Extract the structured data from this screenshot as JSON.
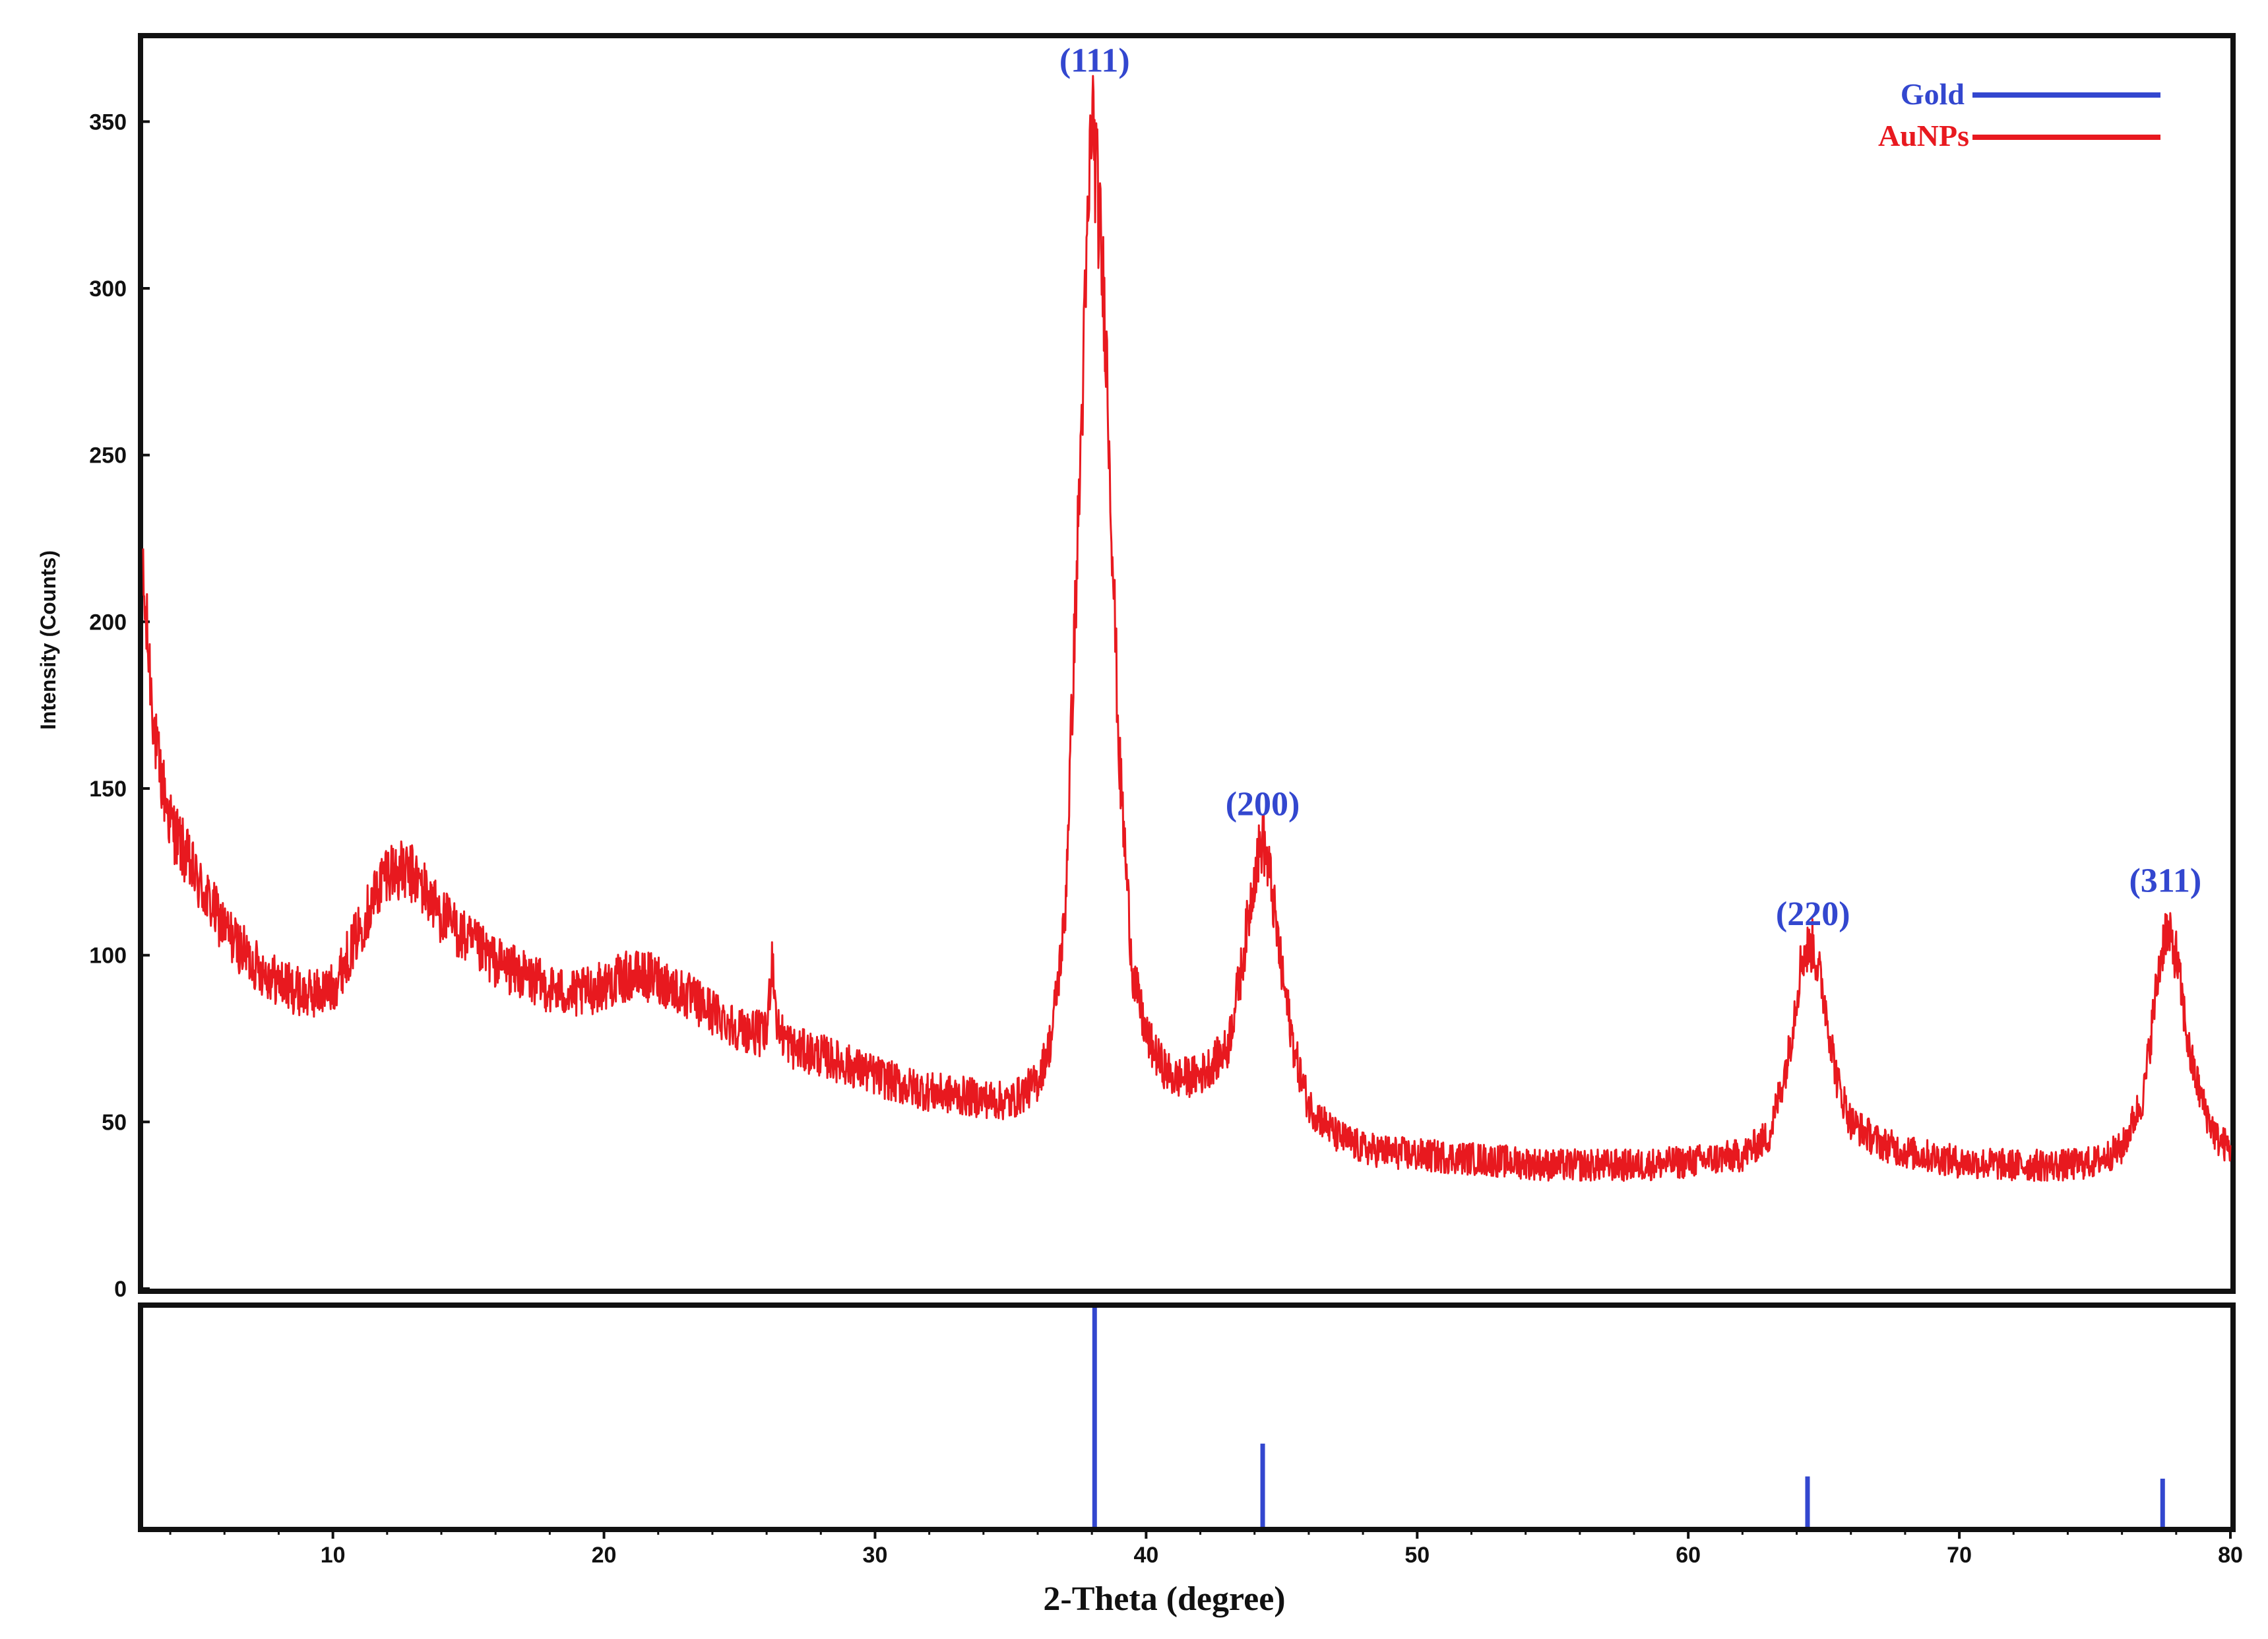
{
  "chart_data": {
    "type": "line",
    "xlabel": "2-Theta (degree)",
    "ylabel": "Intensity (Counts)",
    "xlim": [
      3,
      80
    ],
    "ylim": [
      0,
      375
    ],
    "x_ticks": [
      10,
      20,
      30,
      40,
      50,
      60,
      70,
      80
    ],
    "y_ticks": [
      0,
      50,
      100,
      150,
      200,
      250,
      300,
      350
    ],
    "legend": [
      {
        "name": "Gold",
        "color": "#3347cf"
      },
      {
        "name": "AuNPs",
        "color": "#e8191f"
      }
    ],
    "series": [
      {
        "name": "AuNPs",
        "color": "#e8191f",
        "x": [
          3,
          3.5,
          4,
          5,
          6,
          7,
          8,
          9,
          10,
          11,
          12,
          13,
          14,
          15,
          16,
          17,
          18,
          19,
          20,
          21,
          22,
          23,
          24,
          25,
          26,
          26.2,
          26.4,
          27,
          28,
          29,
          30,
          31,
          32,
          33,
          34,
          35,
          36,
          36.5,
          37,
          37.5,
          38,
          38.5,
          39,
          39.5,
          40,
          40.5,
          41,
          42,
          43,
          43.5,
          44,
          44.3,
          44.6,
          45,
          45.5,
          46,
          47,
          48,
          50,
          52,
          55,
          58,
          60,
          62,
          63,
          63.7,
          64.2,
          64.6,
          65,
          65.5,
          66,
          67,
          68,
          70,
          72,
          74,
          75,
          76,
          76.8,
          77.3,
          77.6,
          78,
          78.5,
          79,
          79.5,
          80
        ],
        "y": [
          210,
          160,
          140,
          122,
          108,
          98,
          92,
          88,
          90,
          108,
          126,
          124,
          112,
          104,
          98,
          94,
          90,
          88,
          91,
          94,
          93,
          88,
          83,
          78,
          76,
          100,
          78,
          72,
          70,
          67,
          64,
          61,
          59,
          58,
          57,
          56,
          62,
          75,
          110,
          230,
          355,
          290,
          160,
          95,
          76,
          68,
          63,
          64,
          72,
          95,
          125,
          135,
          122,
          95,
          70,
          55,
          46,
          42,
          40,
          39,
          37,
          37,
          38,
          40,
          46,
          70,
          100,
          103,
          88,
          62,
          50,
          44,
          41,
          38,
          37,
          37,
          38,
          42,
          58,
          92,
          108,
          100,
          70,
          55,
          45,
          42
        ]
      }
    ],
    "reference_peaks": {
      "name": "Gold",
      "color": "#3347cf",
      "x": [
        38.1,
        44.3,
        64.4,
        77.5
      ],
      "relative_intensity": [
        100,
        38,
        23,
        22
      ]
    },
    "annotations": [
      {
        "text": "(111)",
        "x": 38.1,
        "y": 365
      },
      {
        "text": "(200)",
        "x": 44.3,
        "y": 142
      },
      {
        "text": "(220)",
        "x": 64.6,
        "y": 109
      },
      {
        "text": "(311)",
        "x": 77.6,
        "y": 119
      }
    ]
  }
}
